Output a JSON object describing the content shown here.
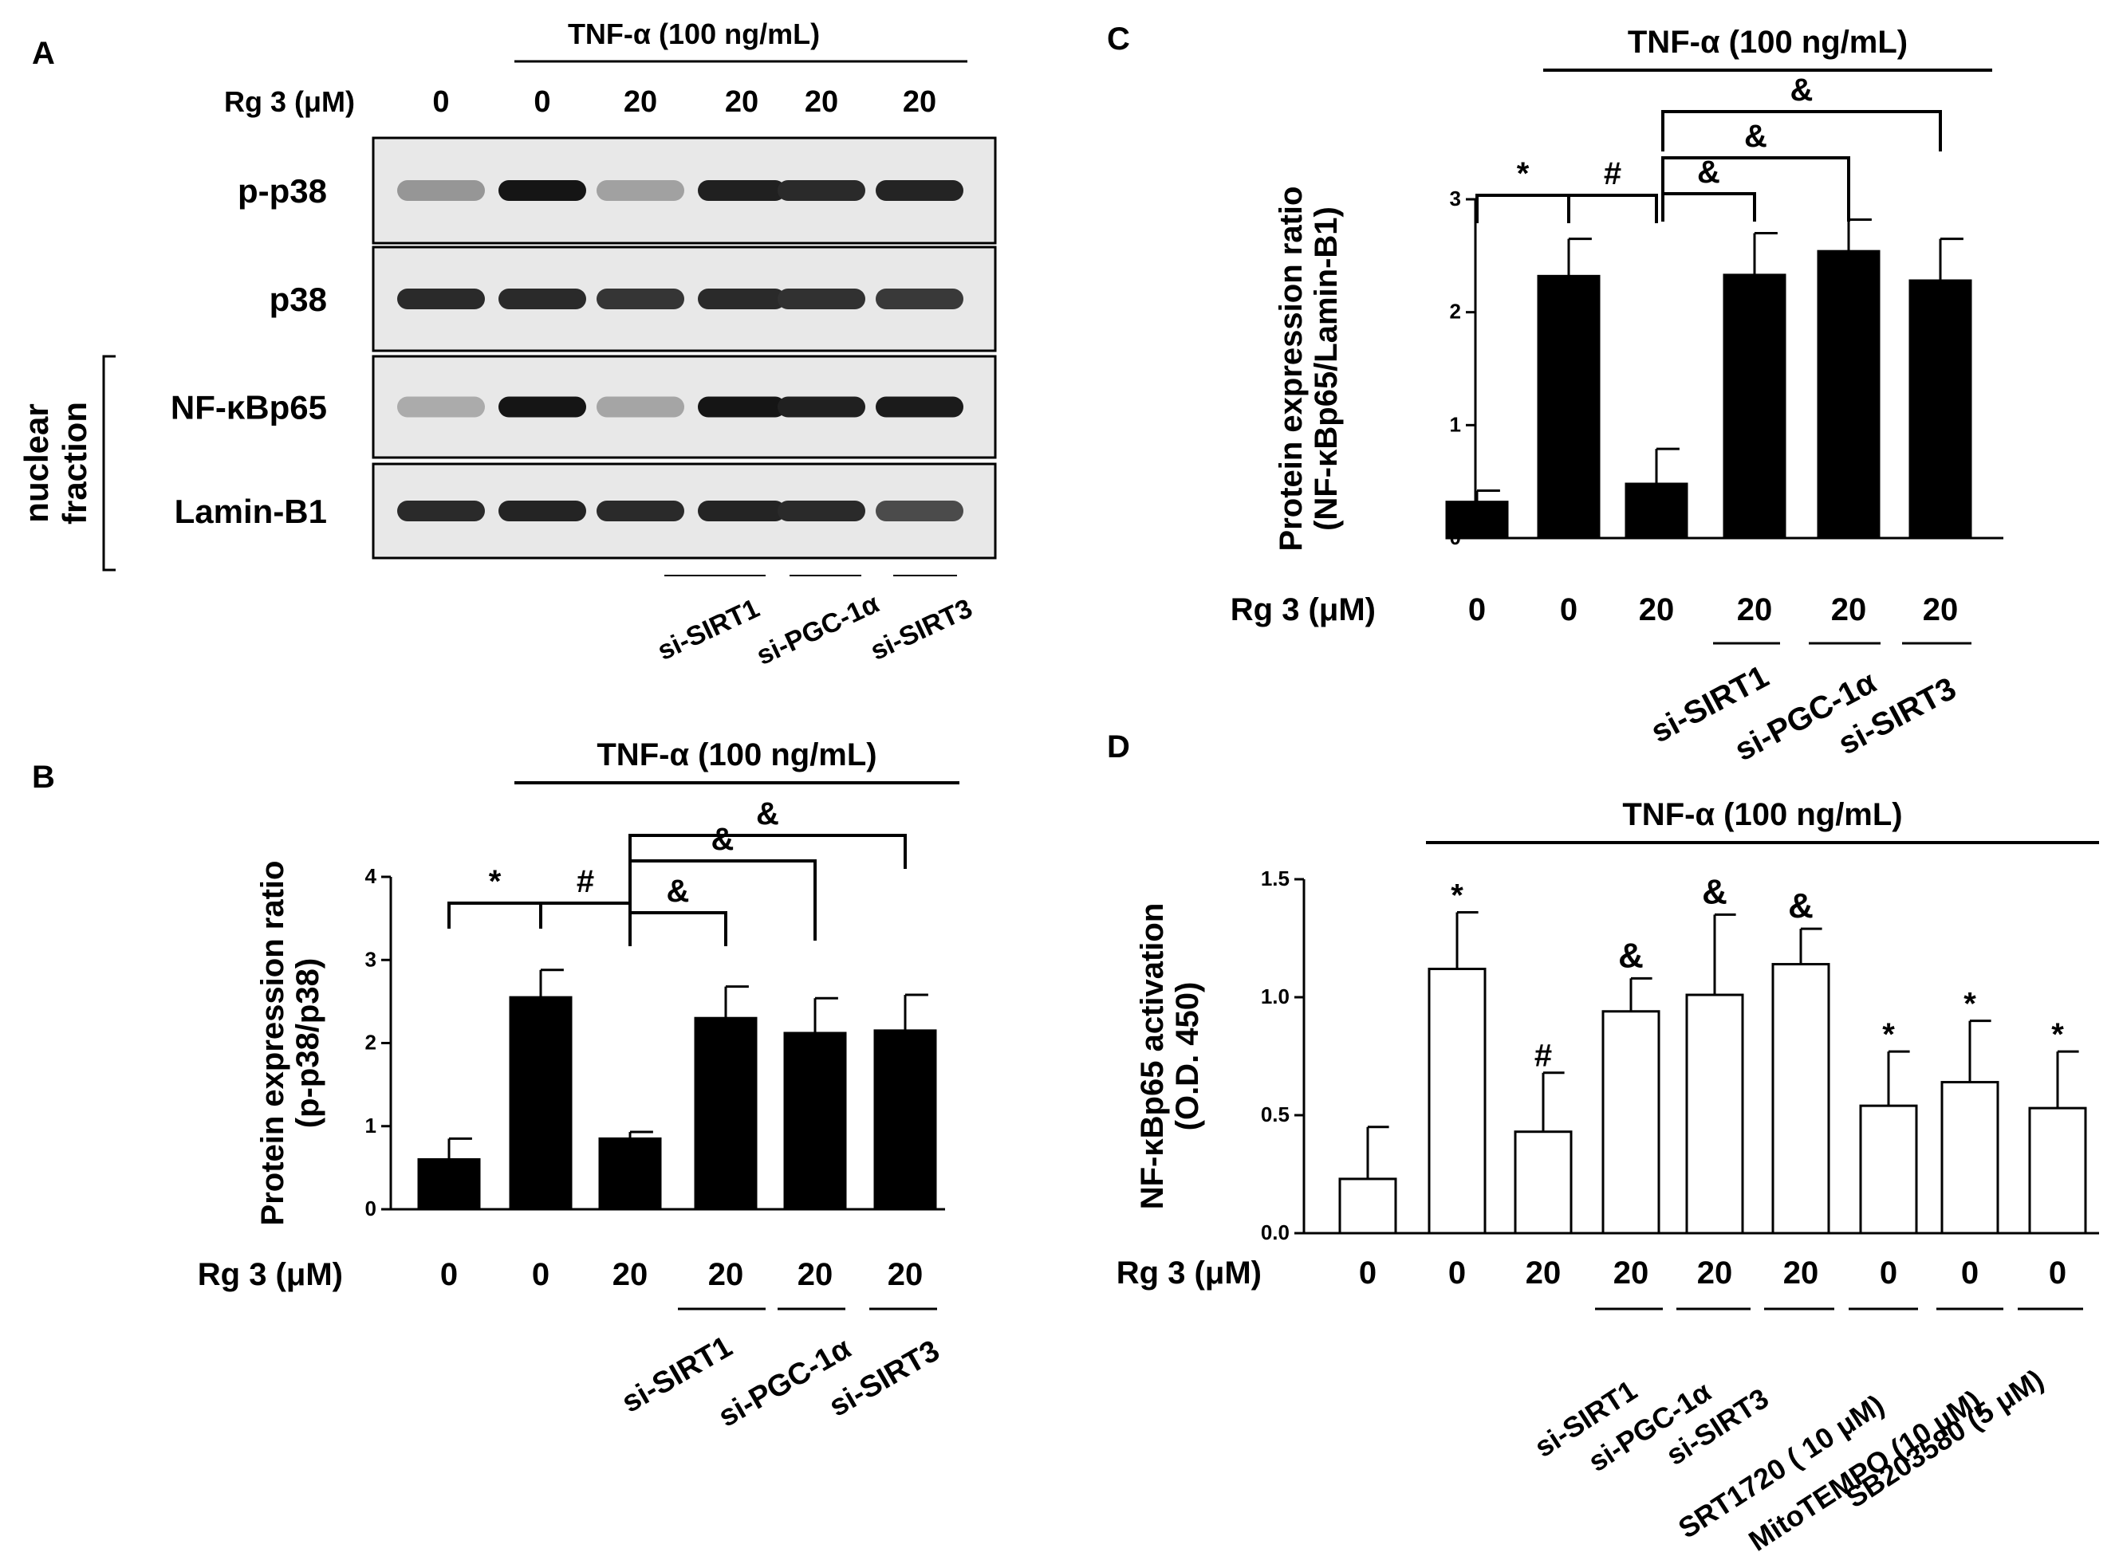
{
  "panel_letters": {
    "a": "A",
    "b": "B",
    "c": "C",
    "d": "D"
  },
  "blot": {
    "treatment_label": "TNF-α (100 ng/mL)",
    "rg3_label": "Rg 3 (μM)",
    "doses": [
      "0",
      "0",
      "20",
      "20",
      "20",
      "20"
    ],
    "rows": [
      "p-p38",
      "p38",
      "NF-κBp65",
      "Lamin-B1"
    ],
    "intensities": [
      [
        0.35,
        0.95,
        0.3,
        0.9,
        0.85,
        0.88
      ],
      [
        0.85,
        0.85,
        0.8,
        0.85,
        0.82,
        0.78
      ],
      [
        0.25,
        0.95,
        0.28,
        0.95,
        0.9,
        0.92
      ],
      [
        0.85,
        0.88,
        0.85,
        0.88,
        0.85,
        0.7
      ]
    ],
    "nuclear_fraction_label": [
      "nuclear",
      "fraction"
    ],
    "sirna": [
      "si-SIRT1",
      "si-PGC-1α",
      "si-SIRT3"
    ]
  },
  "chart_data": [
    {
      "panel": "B",
      "type": "bar",
      "treatment_label": "TNF-α (100 ng/mL)",
      "ylabel": [
        "Protein expression ratio",
        "(p-p38/p38)"
      ],
      "ylim": [
        0,
        4
      ],
      "yticks": [
        "0",
        "1",
        "2",
        "3",
        "4"
      ],
      "rg3_label": "Rg 3 (μM)",
      "categories": [
        "0",
        "0",
        "20",
        "20",
        "20",
        "20"
      ],
      "values": [
        0.6,
        2.55,
        0.85,
        2.3,
        2.12,
        2.15
      ],
      "errors": [
        0.25,
        0.33,
        0.08,
        0.38,
        0.42,
        0.43
      ],
      "fill": "#000000",
      "sig_labels": [
        "*",
        "#",
        "&",
        "&",
        "&"
      ],
      "sirna": [
        "si-SIRT1",
        "si-PGC-1α",
        "si-SIRT3"
      ]
    },
    {
      "panel": "C",
      "type": "bar",
      "treatment_label": "TNF-α (100 ng/mL)",
      "ylabel": [
        "Protein expression ratio",
        "(NF-κBp65/Lamin-B1)"
      ],
      "ylim": [
        0,
        3
      ],
      "yticks": [
        "0",
        "1",
        "2",
        "3"
      ],
      "rg3_label": "Rg 3 (μM)",
      "categories": [
        "0",
        "0",
        "20",
        "20",
        "20",
        "20"
      ],
      "values": [
        0.32,
        2.32,
        0.48,
        2.33,
        2.54,
        2.28
      ],
      "errors": [
        0.1,
        0.33,
        0.31,
        0.37,
        0.28,
        0.37
      ],
      "fill": "#000000",
      "sig_labels": [
        "*",
        "#",
        "&",
        "&",
        "&"
      ],
      "sirna": [
        "si-SIRT1",
        "si-PGC-1α",
        "si-SIRT3"
      ]
    },
    {
      "panel": "D",
      "type": "bar",
      "treatment_label": "TNF-α (100 ng/mL)",
      "ylabel": [
        "NF-κBp65 activation",
        "(O.D. 450)"
      ],
      "ylim": [
        0,
        1.5
      ],
      "yticks": [
        "0.0",
        "0.5",
        "1.0",
        "1.5"
      ],
      "rg3_label": "Rg 3 (μM)",
      "categories": [
        "0",
        "0",
        "20",
        "20",
        "20",
        "20",
        "0",
        "0",
        "0"
      ],
      "values": [
        0.23,
        1.12,
        0.43,
        0.94,
        1.01,
        1.14,
        0.54,
        0.64,
        0.53
      ],
      "errors": [
        0.22,
        0.24,
        0.25,
        0.14,
        0.34,
        0.15,
        0.23,
        0.26,
        0.24
      ],
      "fill": "#ffffff",
      "annotations": [
        "",
        "*",
        "#",
        "&",
        "&",
        "&",
        "*",
        "*",
        "*"
      ],
      "treatments": [
        "si-SIRT1",
        "si-PGC-1α",
        "si-SIRT3",
        "SRT1720 ( 10 μM)",
        "MitoTEMPO (10 μM)",
        "SB203580 (5 μM)"
      ]
    }
  ]
}
